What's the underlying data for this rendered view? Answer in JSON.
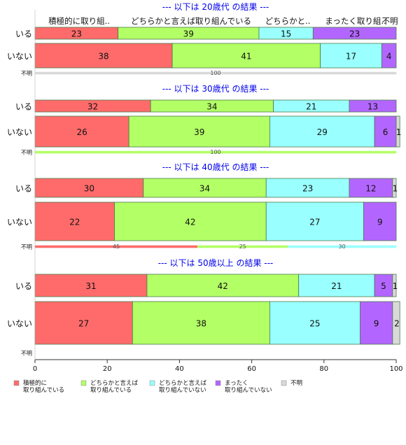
{
  "chart_data": {
    "type": "bar",
    "orientation": "horizontal",
    "stacked": true,
    "xlim": [
      0,
      100
    ],
    "x_ticks": [
      "0",
      "20",
      "40",
      "60",
      "80",
      "100"
    ],
    "colors": [
      "#ff6b6b",
      "#b3ff66",
      "#99ffff",
      "#b366ff",
      "#d9d9d9"
    ],
    "column_header": [
      "積極的に取り組..",
      "どちらかと言えば取り組んでいる",
      "どちらかと..",
      "まったく取り組..",
      "不明"
    ],
    "legend": [
      {
        "line1": "積極的に",
        "line2": "取り組んでいる"
      },
      {
        "line1": "どちらかと言えば",
        "line2": "取り組んでいる"
      },
      {
        "line1": "どちらかと言えば",
        "line2": "取り組んでいない"
      },
      {
        "line1": "まったく",
        "line2": "取り組んでいない"
      },
      {
        "line1": "不明",
        "line2": ""
      }
    ],
    "groups": [
      {
        "title": "--- 以下は 20歳代 の結果 ---",
        "rows": [
          {
            "label": "いる",
            "values": [
              23,
              39,
              15,
              23,
              0
            ]
          },
          {
            "label": "いない",
            "values": [
              38,
              41,
              17,
              4,
              0
            ]
          },
          {
            "label": "不明",
            "values": [
              0,
              0,
              0,
              0,
              100
            ],
            "thin": true
          }
        ]
      },
      {
        "title": "--- 以下は 30歳代 の結果 ---",
        "rows": [
          {
            "label": "いる",
            "values": [
              32,
              34,
              21,
              13,
              0
            ]
          },
          {
            "label": "いない",
            "values": [
              26,
              39,
              29,
              6,
              1
            ]
          },
          {
            "label": "不明",
            "values": [
              0,
              100,
              0,
              0,
              0
            ],
            "thin": true
          }
        ]
      },
      {
        "title": "--- 以下は 40歳代 の結果 ---",
        "rows": [
          {
            "label": "いる",
            "values": [
              30,
              34,
              23,
              12,
              1
            ]
          },
          {
            "label": "いない",
            "values": [
              22,
              42,
              27,
              9,
              0
            ]
          },
          {
            "label": "不明",
            "values": [
              45,
              25,
              30,
              0,
              0
            ],
            "thin": true
          }
        ]
      },
      {
        "title": "--- 以下は 50歳以上 の結果 ---",
        "rows": [
          {
            "label": "いる",
            "values": [
              31,
              42,
              21,
              5,
              1
            ]
          },
          {
            "label": "いない",
            "values": [
              27,
              38,
              25,
              9,
              2
            ]
          },
          {
            "label": "不明",
            "values": [
              0,
              0,
              0,
              0,
              0
            ],
            "thin": true
          }
        ]
      }
    ]
  }
}
